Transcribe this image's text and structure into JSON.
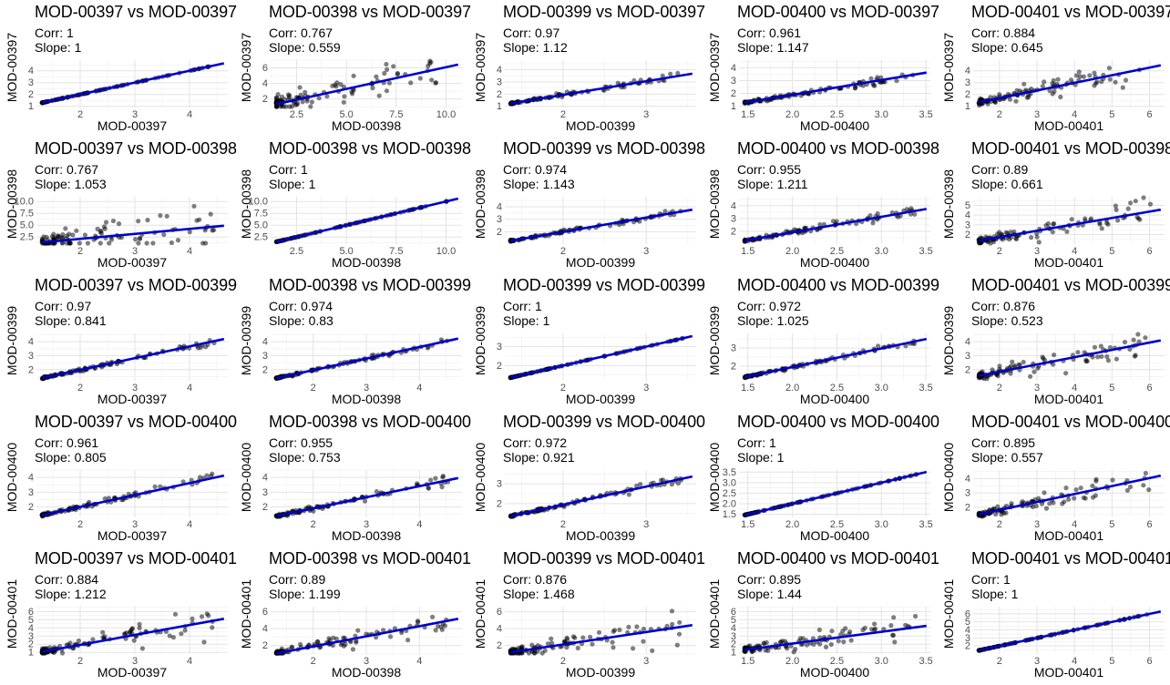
{
  "chart_data": {
    "type": "scatter",
    "layout": "5x5 pairwise scatter matrix with linear fit",
    "fit_line_color": "#0000cc",
    "point_color": "#000000",
    "panels": [
      {
        "title": "MOD-00397 vs MOD-00397",
        "corr_label": "Corr: 1",
        "slope_label": "Slope: 1",
        "xlabel": "MOD-00397",
        "ylabel": "MOD-00397",
        "xlim": [
          1.2,
          4.7
        ],
        "ylim": [
          0.9,
          4.9
        ],
        "xticks": [
          2,
          3,
          4
        ],
        "yticks": [
          1,
          2,
          3,
          4
        ],
        "corr": 1,
        "slope": 1,
        "intercept": 0
      },
      {
        "title": "MOD-00398 vs MOD-00397",
        "corr_label": "Corr: 0.767",
        "slope_label": "Slope: 0.559",
        "xlabel": "MOD-00398",
        "ylabel": "MOD-00397",
        "xlim": [
          1.2,
          10.8
        ],
        "ylim": [
          0.9,
          7.0
        ],
        "xticks": [
          2.5,
          5.0,
          7.5,
          10.0
        ],
        "yticks": [
          2,
          4,
          6
        ],
        "corr": 0.767,
        "slope": 0.559,
        "intercept": 0.5
      },
      {
        "title": "MOD-00399 vs MOD-00397",
        "corr_label": "Corr: 0.97",
        "slope_label": "Slope: 1.12",
        "xlabel": "MOD-00399",
        "ylabel": "MOD-00397",
        "xlim": [
          1.3,
          3.6
        ],
        "ylim": [
          0.9,
          4.8
        ],
        "xticks": [
          2,
          3
        ],
        "yticks": [
          1,
          2,
          3,
          4
        ],
        "corr": 0.97,
        "slope": 1.12,
        "intercept": -0.3
      },
      {
        "title": "MOD-00400 vs MOD-00397",
        "corr_label": "Corr: 0.961",
        "slope_label": "Slope: 1.147",
        "xlabel": "MOD-00400",
        "ylabel": "MOD-00397",
        "xlim": [
          1.4,
          3.55
        ],
        "ylim": [
          0.9,
          4.6
        ],
        "xticks": [
          1.5,
          2.0,
          2.5,
          3.0,
          3.5
        ],
        "yticks": [
          1,
          2,
          3,
          4
        ],
        "corr": 0.961,
        "slope": 1.147,
        "intercept": -0.4
      },
      {
        "title": "MOD-00401 vs MOD-00397",
        "corr_label": "Corr: 0.884",
        "slope_label": "Slope: 0.645",
        "xlabel": "MOD-00401",
        "ylabel": "MOD-00397",
        "xlim": [
          1.3,
          6.4
        ],
        "ylim": [
          0.9,
          4.9
        ],
        "xticks": [
          2,
          3,
          4,
          5,
          6
        ],
        "yticks": [
          1,
          2,
          3,
          4
        ],
        "corr": 0.884,
        "slope": 0.645,
        "intercept": 0.4
      },
      {
        "title": "MOD-00397 vs MOD-00398",
        "corr_label": "Corr: 0.767",
        "slope_label": "Slope: 1.053",
        "xlabel": "MOD-00397",
        "ylabel": "MOD-00398",
        "xlim": [
          1.2,
          4.7
        ],
        "ylim": [
          1.0,
          11.0
        ],
        "xticks": [
          2,
          3,
          4
        ],
        "yticks": [
          2.5,
          5.0,
          7.5,
          10.0
        ],
        "corr": 0.767,
        "slope": 1.053,
        "intercept": 0.0
      },
      {
        "title": "MOD-00398 vs MOD-00398",
        "corr_label": "Corr: 1",
        "slope_label": "Slope: 1",
        "xlabel": "MOD-00398",
        "ylabel": "MOD-00398",
        "xlim": [
          1.2,
          10.8
        ],
        "ylim": [
          1.0,
          11.0
        ],
        "xticks": [
          2.5,
          5.0,
          7.5,
          10.0
        ],
        "yticks": [
          2.5,
          5.0,
          7.5,
          10.0
        ],
        "corr": 1,
        "slope": 1,
        "intercept": 0
      },
      {
        "title": "MOD-00399 vs MOD-00398",
        "corr_label": "Corr: 0.974",
        "slope_label": "Slope: 1.143",
        "xlabel": "MOD-00399",
        "ylabel": "MOD-00398",
        "xlim": [
          1.3,
          3.6
        ],
        "ylim": [
          1.0,
          4.8
        ],
        "xticks": [
          2,
          3
        ],
        "yticks": [
          2,
          3,
          4
        ],
        "corr": 0.974,
        "slope": 1.143,
        "intercept": -0.3
      },
      {
        "title": "MOD-00400 vs MOD-00398",
        "corr_label": "Corr: 0.955",
        "slope_label": "Slope: 1.211",
        "xlabel": "MOD-00400",
        "ylabel": "MOD-00398",
        "xlim": [
          1.4,
          3.55
        ],
        "ylim": [
          1.0,
          4.7
        ],
        "xticks": [
          1.5,
          2.0,
          2.5,
          3.0,
          3.5
        ],
        "yticks": [
          2,
          3,
          4
        ],
        "corr": 0.955,
        "slope": 1.211,
        "intercept": -0.5
      },
      {
        "title": "MOD-00401 vs MOD-00398",
        "corr_label": "Corr: 0.89",
        "slope_label": "Slope: 0.661",
        "xlabel": "MOD-00401",
        "ylabel": "MOD-00398",
        "xlim": [
          1.3,
          6.4
        ],
        "ylim": [
          1.0,
          5.9
        ],
        "xticks": [
          2,
          3,
          4,
          5,
          6
        ],
        "yticks": [
          2,
          3,
          4,
          5
        ],
        "corr": 0.89,
        "slope": 0.661,
        "intercept": 0.4
      },
      {
        "title": "MOD-00397 vs MOD-00399",
        "corr_label": "Corr: 0.97",
        "slope_label": "Slope: 0.841",
        "xlabel": "MOD-00397",
        "ylabel": "MOD-00399",
        "xlim": [
          1.2,
          4.7
        ],
        "ylim": [
          1.2,
          4.6
        ],
        "xticks": [
          2,
          3,
          4
        ],
        "yticks": [
          2,
          3,
          4
        ],
        "corr": 0.97,
        "slope": 0.841,
        "intercept": 0.3
      },
      {
        "title": "MOD-00398 vs MOD-00399",
        "corr_label": "Corr: 0.974",
        "slope_label": "Slope: 0.83",
        "xlabel": "MOD-00398",
        "ylabel": "MOD-00399",
        "xlim": [
          1.2,
          4.8
        ],
        "ylim": [
          1.2,
          4.6
        ],
        "xticks": [
          2,
          3,
          4
        ],
        "yticks": [
          2,
          3,
          4
        ],
        "corr": 0.974,
        "slope": 0.83,
        "intercept": 0.3
      },
      {
        "title": "MOD-00399 vs MOD-00399",
        "corr_label": "Corr: 1",
        "slope_label": "Slope: 1",
        "xlabel": "MOD-00399",
        "ylabel": "MOD-00399",
        "xlim": [
          1.3,
          3.6
        ],
        "ylim": [
          1.2,
          3.7
        ],
        "xticks": [
          2,
          3
        ],
        "yticks": [
          2,
          3
        ],
        "corr": 1,
        "slope": 1,
        "intercept": 0
      },
      {
        "title": "MOD-00400 vs MOD-00399",
        "corr_label": "Corr: 0.972",
        "slope_label": "Slope: 1.025",
        "xlabel": "MOD-00400",
        "ylabel": "MOD-00399",
        "xlim": [
          1.4,
          3.55
        ],
        "ylim": [
          1.2,
          3.8
        ],
        "xticks": [
          1.5,
          2.0,
          2.5,
          3.0,
          3.5
        ],
        "yticks": [
          2,
          3
        ],
        "corr": 0.972,
        "slope": 1.025,
        "intercept": -0.1
      },
      {
        "title": "MOD-00401 vs MOD-00399",
        "corr_label": "Corr: 0.876",
        "slope_label": "Slope: 0.523",
        "xlabel": "MOD-00401",
        "ylabel": "MOD-00399",
        "xlim": [
          1.3,
          6.4
        ],
        "ylim": [
          1.2,
          4.6
        ],
        "xticks": [
          2,
          3,
          4,
          5,
          6
        ],
        "yticks": [
          2,
          3,
          4
        ],
        "corr": 0.876,
        "slope": 0.523,
        "intercept": 0.8
      },
      {
        "title": "MOD-00397 vs MOD-00400",
        "corr_label": "Corr: 0.961",
        "slope_label": "Slope: 0.805",
        "xlabel": "MOD-00397",
        "ylabel": "MOD-00400",
        "xlim": [
          1.2,
          4.7
        ],
        "ylim": [
          1.3,
          4.5
        ],
        "xticks": [
          2,
          3,
          4
        ],
        "yticks": [
          2,
          3,
          4
        ],
        "corr": 0.961,
        "slope": 0.805,
        "intercept": 0.4
      },
      {
        "title": "MOD-00398 vs MOD-00400",
        "corr_label": "Corr: 0.955",
        "slope_label": "Slope: 0.753",
        "xlabel": "MOD-00398",
        "ylabel": "MOD-00400",
        "xlim": [
          1.2,
          4.8
        ],
        "ylim": [
          1.3,
          4.5
        ],
        "xticks": [
          2,
          3,
          4
        ],
        "yticks": [
          2,
          3,
          4
        ],
        "corr": 0.955,
        "slope": 0.753,
        "intercept": 0.4
      },
      {
        "title": "MOD-00399 vs MOD-00400",
        "corr_label": "Corr: 0.972",
        "slope_label": "Slope: 0.921",
        "xlabel": "MOD-00399",
        "ylabel": "MOD-00400",
        "xlim": [
          1.3,
          3.6
        ],
        "ylim": [
          1.3,
          3.7
        ],
        "xticks": [
          2,
          3
        ],
        "yticks": [
          2,
          3
        ],
        "corr": 0.972,
        "slope": 0.921,
        "intercept": 0.1
      },
      {
        "title": "MOD-00400 vs MOD-00400",
        "corr_label": "Corr: 1",
        "slope_label": "Slope: 1",
        "xlabel": "MOD-00400",
        "ylabel": "MOD-00400",
        "xlim": [
          1.4,
          3.55
        ],
        "ylim": [
          1.35,
          3.6
        ],
        "xticks": [
          1.5,
          2.0,
          2.5,
          3.0,
          3.5
        ],
        "yticks": [
          1.5,
          2.0,
          2.5,
          3.0,
          3.5
        ],
        "corr": 1,
        "slope": 1,
        "intercept": 0
      },
      {
        "title": "MOD-00401 vs MOD-00400",
        "corr_label": "Corr: 0.895",
        "slope_label": "Slope: 0.557",
        "xlabel": "MOD-00401",
        "ylabel": "MOD-00400",
        "xlim": [
          1.3,
          6.4
        ],
        "ylim": [
          1.3,
          4.6
        ],
        "xticks": [
          2,
          3,
          4,
          5,
          6
        ],
        "yticks": [
          2,
          3,
          4
        ],
        "corr": 0.895,
        "slope": 0.557,
        "intercept": 0.7
      },
      {
        "title": "MOD-00397 vs MOD-00401",
        "corr_label": "Corr: 0.884",
        "slope_label": "Slope: 1.212",
        "xlabel": "MOD-00397",
        "ylabel": "MOD-00401",
        "xlim": [
          1.2,
          4.7
        ],
        "ylim": [
          0.8,
          6.6
        ],
        "xticks": [
          2,
          3,
          4
        ],
        "yticks": [
          1,
          2,
          3,
          4,
          5,
          6
        ],
        "corr": 0.884,
        "slope": 1.212,
        "intercept": -0.5
      },
      {
        "title": "MOD-00398 vs MOD-00401",
        "corr_label": "Corr: 0.89",
        "slope_label": "Slope: 1.199",
        "xlabel": "MOD-00398",
        "ylabel": "MOD-00401",
        "xlim": [
          1.2,
          4.8
        ],
        "ylim": [
          1.0,
          6.6
        ],
        "xticks": [
          2,
          3,
          4
        ],
        "yticks": [
          2,
          4,
          6
        ],
        "corr": 0.89,
        "slope": 1.199,
        "intercept": -0.5
      },
      {
        "title": "MOD-00399 vs MOD-00401",
        "corr_label": "Corr: 0.876",
        "slope_label": "Slope: 1.468",
        "xlabel": "MOD-00399",
        "ylabel": "MOD-00401",
        "xlim": [
          1.3,
          3.6
        ],
        "ylim": [
          1.0,
          6.6
        ],
        "xticks": [
          2,
          3
        ],
        "yticks": [
          2,
          4,
          6
        ],
        "corr": 0.876,
        "slope": 1.468,
        "intercept": -0.8
      },
      {
        "title": "MOD-00400 vs MOD-00401",
        "corr_label": "Corr: 0.895",
        "slope_label": "Slope: 1.44",
        "xlabel": "MOD-00400",
        "ylabel": "MOD-00401",
        "xlim": [
          1.4,
          3.55
        ],
        "ylim": [
          0.8,
          6.6
        ],
        "xticks": [
          1.5,
          2.0,
          2.5,
          3.0,
          3.5
        ],
        "yticks": [
          1,
          2,
          3,
          4,
          5,
          6
        ],
        "corr": 0.895,
        "slope": 1.44,
        "intercept": -0.8
      },
      {
        "title": "MOD-00401 vs MOD-00401",
        "corr_label": "Corr: 1",
        "slope_label": "Slope: 1",
        "xlabel": "MOD-00401",
        "ylabel": "MOD-00401",
        "xlim": [
          1.3,
          6.4
        ],
        "ylim": [
          1.0,
          6.9
        ],
        "xticks": [
          2,
          3,
          4,
          5,
          6
        ],
        "yticks": [
          2,
          3,
          4,
          5,
          6
        ],
        "corr": 1,
        "slope": 1,
        "intercept": 0
      }
    ]
  }
}
